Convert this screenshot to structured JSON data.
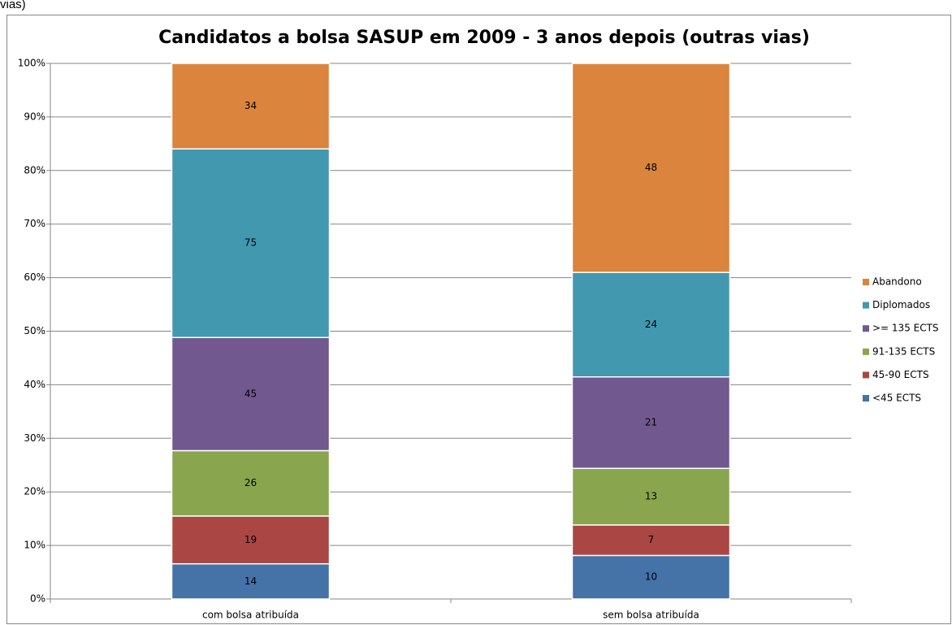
{
  "caption": "vias)",
  "chart_data": {
    "type": "bar",
    "stacking": "percent",
    "title": "Candidatos a bolsa SASUP em 2009 - 3 anos depois (outras vias)",
    "categories": [
      "com bolsa atribuída",
      "sem bolsa atribuída"
    ],
    "series": [
      {
        "name": "<45 ECTS",
        "color": "#4572a7",
        "values": [
          14,
          10
        ]
      },
      {
        "name": "45-90 ECTS",
        "color": "#aa4643",
        "values": [
          19,
          7
        ]
      },
      {
        "name": "91-135 ECTS",
        "color": "#89a54e",
        "values": [
          26,
          13
        ]
      },
      {
        "name": ">= 135 ECTS",
        "color": "#71588f",
        "values": [
          45,
          21
        ]
      },
      {
        "name": "Diplomados",
        "color": "#4198af",
        "values": [
          75,
          24
        ]
      },
      {
        "name": "Abandono",
        "color": "#db843d",
        "values": [
          34,
          48
        ]
      }
    ],
    "ylim": [
      0,
      100
    ],
    "yticks": [
      {
        "value": 0,
        "label": "0%"
      },
      {
        "value": 10,
        "label": "10%"
      },
      {
        "value": 20,
        "label": "20%"
      },
      {
        "value": 30,
        "label": "30%"
      },
      {
        "value": 40,
        "label": "40%"
      },
      {
        "value": 50,
        "label": "50%"
      },
      {
        "value": 60,
        "label": "60%"
      },
      {
        "value": 70,
        "label": "70%"
      },
      {
        "value": 80,
        "label": "80%"
      },
      {
        "value": 90,
        "label": "90%"
      },
      {
        "value": 100,
        "label": "100%"
      }
    ],
    "grid": true,
    "legend": "right"
  }
}
